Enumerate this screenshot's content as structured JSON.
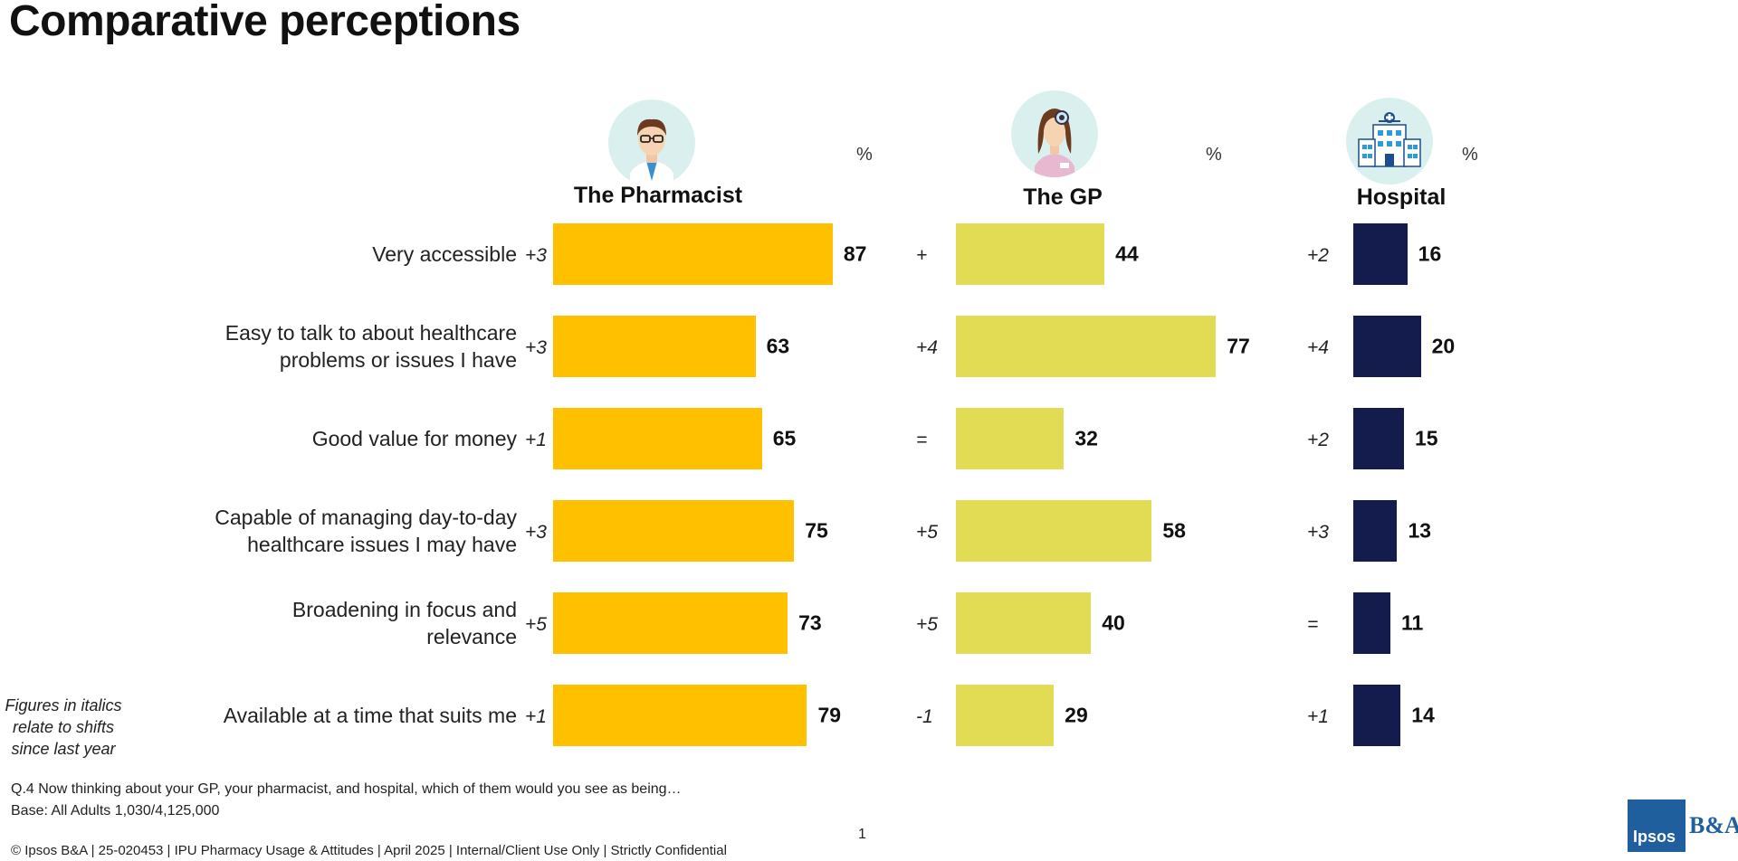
{
  "title": "Comparative perceptions",
  "columns": [
    {
      "name": "The Pharmacist",
      "pct_label": "%",
      "icon": "pharmacist-icon",
      "color": "#FFC000"
    },
    {
      "name": "The GP",
      "pct_label": "%",
      "icon": "gp-doctor-icon",
      "color": "#E1DC53"
    },
    {
      "name": "Hospital",
      "pct_label": "%",
      "icon": "hospital-icon",
      "color": "#141B4D"
    }
  ],
  "chart_data": {
    "type": "bar",
    "orientation": "horizontal",
    "title": "Comparative perceptions",
    "unit": "%",
    "categories": [
      "Very accessible",
      "Easy to talk to about healthcare problems or issues I have",
      "Good value for money",
      "Capable of managing day-to-day healthcare issues I may have",
      "Broadening in focus and relevance",
      "Available at a time that suits me"
    ],
    "category_lines": [
      [
        "Very accessible"
      ],
      [
        "Easy to talk to about healthcare",
        "problems or issues I have"
      ],
      [
        "Good value for money"
      ],
      [
        "Capable of managing day-to-day",
        "healthcare issues I may have"
      ],
      [
        "Broadening in focus and",
        "relevance"
      ],
      [
        "Available at a time that suits me"
      ]
    ],
    "series": [
      {
        "name": "The Pharmacist",
        "values": [
          87,
          63,
          65,
          75,
          73,
          79
        ],
        "shifts": [
          "+3",
          "+3",
          "+1",
          "+3",
          "+5",
          "+1"
        ],
        "color": "#FFC000"
      },
      {
        "name": "The GP",
        "values": [
          44,
          77,
          32,
          58,
          40,
          29
        ],
        "shifts": [
          "+",
          "+4",
          "=",
          "+5",
          "+5",
          "-1"
        ],
        "color": "#E1DC53"
      },
      {
        "name": "Hospital",
        "values": [
          16,
          20,
          15,
          13,
          11,
          14
        ],
        "shifts": [
          "+2",
          "+4",
          "+2",
          "+3",
          "=",
          "+1"
        ],
        "color": "#141B4D"
      }
    ],
    "grid": false,
    "legend": "none"
  },
  "note": [
    "Figures in italics",
    "relate to  shifts",
    "since last year"
  ],
  "footer": {
    "question": "Q.4 Now thinking about your GP, your pharmacist, and hospital, which of them would you see as being…",
    "base": "Base: All Adults 1,030/4,125,000",
    "copyright": "© Ipsos B&A  | 25-020453 |  IPU  Pharmacy Usage & Attitudes  | April 2025 | Internal/Client Use Only | Strictly Confidential",
    "page_number": "1"
  },
  "logo": {
    "ipsos": "Ipsos",
    "ba": "B&A"
  }
}
